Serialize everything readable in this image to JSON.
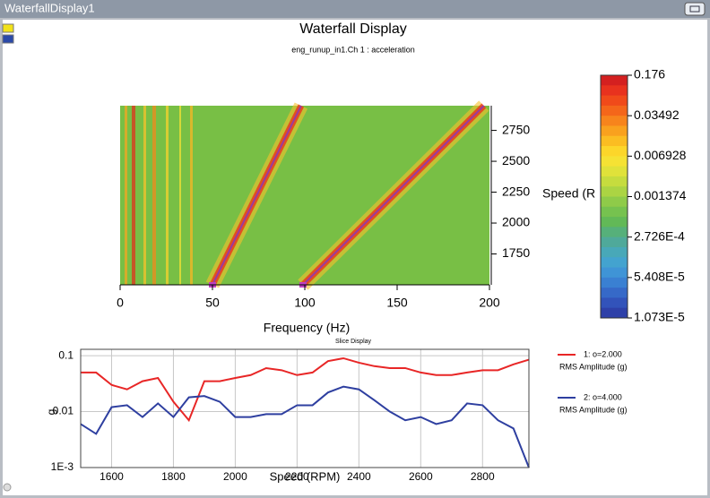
{
  "window": {
    "title": "WaterfallDisplay1"
  },
  "chart_data": [
    {
      "type": "waterfall",
      "title": "Waterfall Display",
      "subtitle": "eng_runup_in1.Ch 1 : acceleration",
      "x_label": "Frequency (Hz)",
      "y_label": "Speed (R",
      "xlim": [
        0,
        200
      ],
      "xticks": [
        0,
        50,
        100,
        150,
        200
      ],
      "ylim": [
        1500,
        2950
      ],
      "yticks": [
        1750,
        2000,
        2250,
        2500,
        2750
      ],
      "tracks": [
        {
          "x": [
            50,
            98
          ],
          "y": [
            1500,
            2950
          ],
          "color": "#9b3aa0"
        },
        {
          "x": [
            99,
            197
          ],
          "y": [
            1500,
            2950
          ],
          "color": "#9b3aa0"
        }
      ],
      "colorbar": {
        "log": true,
        "lim": [
          1.073e-05,
          0.176
        ],
        "ticks": [
          0.176,
          0.03492,
          0.006928,
          0.001374,
          {
            "value": 0.0002726,
            "label": "2.726E-4"
          },
          {
            "value": 5.408e-05,
            "label": "5.408E-5"
          },
          {
            "value": 1.073e-05,
            "label": "1.073E-5"
          }
        ],
        "colors": [
          "#d42020",
          "#e8321e",
          "#f04a1a",
          "#f4661a",
          "#f7841c",
          "#f9a11e",
          "#fbbd22",
          "#fcd62a",
          "#f5e234",
          "#e0e23a",
          "#c6dc3e",
          "#abd443",
          "#8fcb49",
          "#76c24f",
          "#62b957",
          "#56b07a",
          "#4fa99a",
          "#48a8b8",
          "#43a3cf",
          "#3f94d6",
          "#3a80d2",
          "#3669c8",
          "#3253ba",
          "#2e40a8"
        ]
      }
    },
    {
      "type": "line",
      "title": "Slice Display",
      "x_label": "Speed (RPM)",
      "y_label": "g",
      "xlim": [
        1500,
        2950
      ],
      "xticks": [
        1600,
        1800,
        2000,
        2200,
        2400,
        2600,
        2800
      ],
      "ylim": [
        0.001,
        0.13
      ],
      "ylog": true,
      "yticks": [
        {
          "value": 0.001,
          "label": "1E-3"
        },
        0.01,
        0.1
      ],
      "grid": true,
      "legend": "right",
      "x": [
        1500,
        1550,
        1600,
        1650,
        1700,
        1750,
        1800,
        1850,
        1900,
        1950,
        2000,
        2050,
        2100,
        2150,
        2200,
        2250,
        2300,
        2350,
        2400,
        2450,
        2500,
        2550,
        2600,
        2650,
        2700,
        2750,
        2800,
        2850,
        2900,
        2950
      ],
      "series": [
        {
          "name": "1: o=2.000",
          "unit": "RMS Amplitude (g)",
          "color": "#e82626",
          "values": [
            0.05,
            0.05,
            0.03,
            0.025,
            0.035,
            0.04,
            0.015,
            0.007,
            0.035,
            0.035,
            0.04,
            0.045,
            0.06,
            0.055,
            0.045,
            0.05,
            0.08,
            0.09,
            0.075,
            0.065,
            0.06,
            0.06,
            0.05,
            0.045,
            0.045,
            0.05,
            0.055,
            0.055,
            0.07,
            0.085
          ]
        },
        {
          "name": "2: o=4.000",
          "unit": "RMS Amplitude (g)",
          "color": "#2e3fa0",
          "values": [
            0.006,
            0.004,
            0.012,
            0.013,
            0.008,
            0.014,
            0.008,
            0.018,
            0.019,
            0.015,
            0.008,
            0.008,
            0.009,
            0.009,
            0.013,
            0.013,
            0.022,
            0.028,
            0.025,
            0.016,
            0.01,
            0.007,
            0.008,
            0.006,
            0.007,
            0.014,
            0.013,
            0.007,
            0.005,
            0.001
          ]
        }
      ]
    }
  ]
}
